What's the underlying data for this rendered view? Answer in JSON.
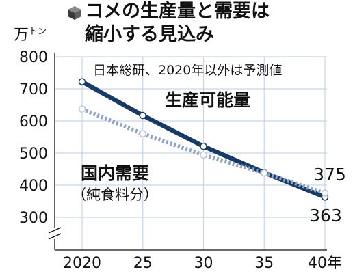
{
  "title_lines": [
    "コメの生産量と需要は",
    "縮小する見込み"
  ],
  "unit_label": "万トン",
  "note": "日本総研、2020年以外は予測値",
  "colors": {
    "production": "#173a66",
    "demand": "#8fa3c4",
    "grid": "#c6d6e9",
    "text": "#111111"
  },
  "chart_data": {
    "type": "line",
    "x": [
      2020,
      2025,
      2030,
      2035,
      2040
    ],
    "x_tick_labels": [
      "2020",
      "25",
      "30",
      "35",
      "40年"
    ],
    "y_ticks": [
      300,
      400,
      500,
      600,
      700,
      800
    ],
    "ylim": [
      300,
      800
    ],
    "axis_break": true,
    "grid": true,
    "series": [
      {
        "name": "生産可能量",
        "values": [
          722,
          617,
          521,
          439,
          363
        ],
        "style": "solid",
        "color": "#173a66",
        "end_label": "363"
      },
      {
        "name": "国内需要（純食料分）",
        "name_lines": [
          "国内需要",
          "（純食料分）"
        ],
        "values": [
          637,
          560,
          494,
          438,
          375
        ],
        "style": "dotted",
        "color": "#8fa3c4",
        "end_label": "375"
      }
    ]
  }
}
